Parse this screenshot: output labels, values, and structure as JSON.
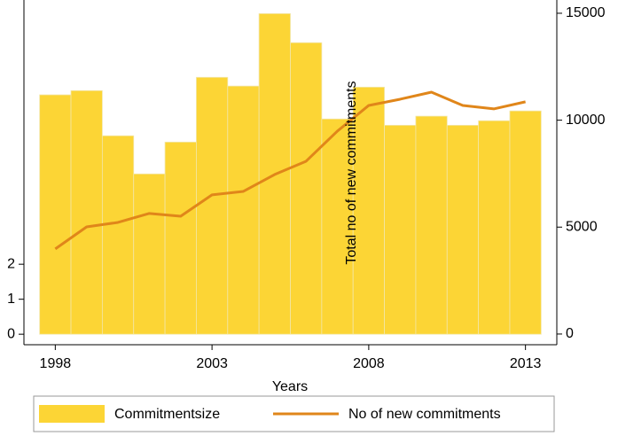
{
  "chart_data": {
    "type": "combo",
    "xlabel": "Years",
    "annotation": "Total no of new commitments",
    "x": [
      1998,
      1999,
      2000,
      2001,
      2002,
      2003,
      2004,
      2005,
      2006,
      2007,
      2008,
      2009,
      2010,
      2011,
      2012,
      2013
    ],
    "xlim": [
      1997,
      2014
    ],
    "xticks": [
      1998,
      2003,
      2008,
      2013
    ],
    "ylim": [
      -0.3,
      9.55
    ],
    "yticks": [
      0,
      1,
      2
    ],
    "y2lim": [
      -500,
      15620
    ],
    "y2ticks": [
      0,
      5000,
      10000,
      15000
    ],
    "series": [
      {
        "name": "Commitmentsize",
        "type": "bar",
        "color": "#fcd535",
        "values": [
          6.84,
          6.96,
          5.67,
          4.58,
          5.49,
          7.34,
          7.09,
          9.16,
          8.33,
          6.15,
          7.06,
          5.97,
          6.23,
          5.97,
          6.1,
          6.38
        ]
      },
      {
        "name": "No of new commitments",
        "type": "line",
        "color": "#e0861a",
        "axis": "y2",
        "values": [
          3980,
          5010,
          5220,
          5640,
          5510,
          6510,
          6670,
          7460,
          8080,
          9490,
          10690,
          10980,
          11310,
          10690,
          10530,
          10860
        ]
      }
    ]
  }
}
